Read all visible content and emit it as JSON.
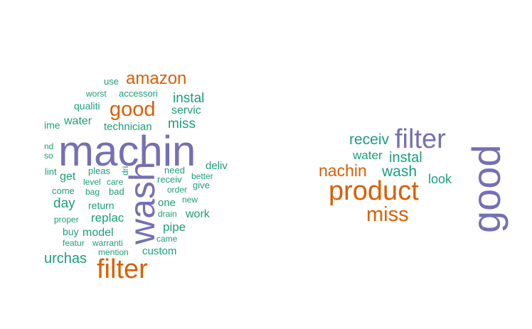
{
  "palette": {
    "purple": "#7570b3",
    "orange": "#d95f02",
    "green": "#1b9e77"
  },
  "chart_data": [
    {
      "type": "wordcloud",
      "words": [
        {
          "text": "machin",
          "color": "purple",
          "weight": 5,
          "rotated": false
        },
        {
          "text": "wash",
          "color": "purple",
          "weight": 4,
          "rotated": true
        },
        {
          "text": "filter",
          "color": "orange",
          "weight": 3,
          "rotated": false
        },
        {
          "text": "good",
          "color": "orange",
          "weight": 3,
          "rotated": false
        },
        {
          "text": "amazon",
          "color": "orange",
          "weight": 3,
          "rotated": false
        },
        {
          "text": "instal",
          "color": "green",
          "weight": 2,
          "rotated": false
        },
        {
          "text": "miss",
          "color": "green",
          "weight": 2,
          "rotated": false
        },
        {
          "text": "servic",
          "color": "green",
          "weight": 2,
          "rotated": false
        },
        {
          "text": "technician",
          "color": "green",
          "weight": 1.5,
          "rotated": false
        },
        {
          "text": "water",
          "color": "green",
          "weight": 1.5,
          "rotated": false
        },
        {
          "text": "qualiti",
          "color": "green",
          "weight": 1.2,
          "rotated": false
        },
        {
          "text": "use",
          "color": "green",
          "weight": 1,
          "rotated": false
        },
        {
          "text": "worst",
          "color": "green",
          "weight": 1,
          "rotated": false
        },
        {
          "text": "accessori",
          "color": "green",
          "weight": 1,
          "rotated": false
        },
        {
          "text": "ime",
          "color": "green",
          "weight": 1,
          "rotated": false
        },
        {
          "text": "nd",
          "color": "green",
          "weight": 1,
          "rotated": false
        },
        {
          "text": "so",
          "color": "green",
          "weight": 1,
          "rotated": false
        },
        {
          "text": "lint",
          "color": "green",
          "weight": 1,
          "rotated": false
        },
        {
          "text": "get",
          "color": "green",
          "weight": 1.5,
          "rotated": false
        },
        {
          "text": "pleas",
          "color": "green",
          "weight": 1,
          "rotated": false
        },
        {
          "text": "dri",
          "color": "green",
          "weight": 1,
          "rotated": true
        },
        {
          "text": "need",
          "color": "green",
          "weight": 1,
          "rotated": false
        },
        {
          "text": "deliv",
          "color": "green",
          "weight": 1.5,
          "rotated": false
        },
        {
          "text": "level",
          "color": "green",
          "weight": 1,
          "rotated": false
        },
        {
          "text": "care",
          "color": "green",
          "weight": 1,
          "rotated": false
        },
        {
          "text": "receiv",
          "color": "green",
          "weight": 1.2,
          "rotated": false
        },
        {
          "text": "better",
          "color": "green",
          "weight": 1,
          "rotated": false
        },
        {
          "text": "give",
          "color": "green",
          "weight": 1,
          "rotated": false
        },
        {
          "text": "come",
          "color": "green",
          "weight": 1,
          "rotated": false
        },
        {
          "text": "bag",
          "color": "green",
          "weight": 1,
          "rotated": false
        },
        {
          "text": "bad",
          "color": "green",
          "weight": 1,
          "rotated": false
        },
        {
          "text": "order",
          "color": "green",
          "weight": 1,
          "rotated": false
        },
        {
          "text": "day",
          "color": "green",
          "weight": 2,
          "rotated": false
        },
        {
          "text": "one",
          "color": "green",
          "weight": 1.5,
          "rotated": false
        },
        {
          "text": "new",
          "color": "green",
          "weight": 1,
          "rotated": false
        },
        {
          "text": "return",
          "color": "green",
          "weight": 1.2,
          "rotated": false
        },
        {
          "text": "replac",
          "color": "green",
          "weight": 1.5,
          "rotated": false
        },
        {
          "text": "drain",
          "color": "green",
          "weight": 1,
          "rotated": false
        },
        {
          "text": "work",
          "color": "green",
          "weight": 1.5,
          "rotated": false
        },
        {
          "text": "proper",
          "color": "green",
          "weight": 1,
          "rotated": false
        },
        {
          "text": "pipe",
          "color": "green",
          "weight": 1.5,
          "rotated": false
        },
        {
          "text": "buy",
          "color": "green",
          "weight": 1.2,
          "rotated": false
        },
        {
          "text": "model",
          "color": "green",
          "weight": 1.5,
          "rotated": false
        },
        {
          "text": "came",
          "color": "green",
          "weight": 1,
          "rotated": false
        },
        {
          "text": "featur",
          "color": "green",
          "weight": 1,
          "rotated": false
        },
        {
          "text": "warranti",
          "color": "green",
          "weight": 1,
          "rotated": false
        },
        {
          "text": "mention",
          "color": "green",
          "weight": 1,
          "rotated": false
        },
        {
          "text": "custom",
          "color": "green",
          "weight": 1.2,
          "rotated": false
        },
        {
          "text": "urchas",
          "color": "green",
          "weight": 1.5,
          "rotated": false
        }
      ]
    },
    {
      "type": "wordcloud",
      "words": [
        {
          "text": "filter",
          "color": "purple",
          "weight": 4,
          "rotated": false
        },
        {
          "text": "good",
          "color": "purple",
          "weight": 4,
          "rotated": true
        },
        {
          "text": "product",
          "color": "orange",
          "weight": 3.5,
          "rotated": false
        },
        {
          "text": "miss",
          "color": "orange",
          "weight": 2.5,
          "rotated": false
        },
        {
          "text": "nachin",
          "color": "orange",
          "weight": 2,
          "rotated": false
        },
        {
          "text": "receiv",
          "color": "green",
          "weight": 2,
          "rotated": false
        },
        {
          "text": "water",
          "color": "green",
          "weight": 1.5,
          "rotated": false
        },
        {
          "text": "instal",
          "color": "green",
          "weight": 2,
          "rotated": false
        },
        {
          "text": "wash",
          "color": "green",
          "weight": 2,
          "rotated": false
        },
        {
          "text": "look",
          "color": "green",
          "weight": 1.5,
          "rotated": false
        }
      ]
    }
  ]
}
